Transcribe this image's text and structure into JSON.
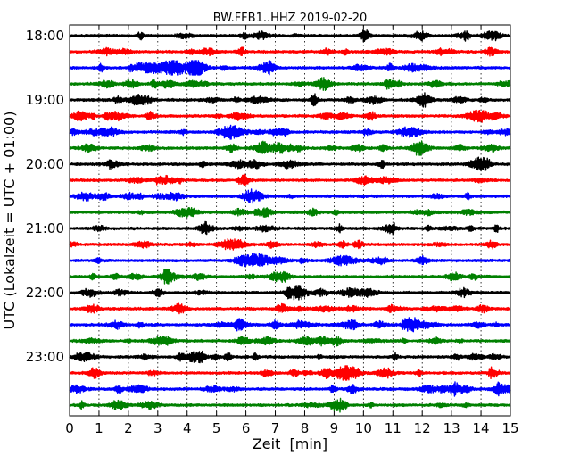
{
  "chart_data": {
    "type": "line",
    "title": "BW.FFB1..HHZ 2019-02-20",
    "xlabel": "Zeit  [min]",
    "ylabel": "UTC (Lokalzeit = UTC + 01:00)",
    "xlim": [
      0,
      15
    ],
    "x_ticks": [
      "0",
      "1",
      "2",
      "3",
      "4",
      "5",
      "6",
      "7",
      "8",
      "9",
      "10",
      "11",
      "12",
      "13",
      "14",
      "15"
    ],
    "y_ticks": [
      "18:00",
      "19:00",
      "20:00",
      "21:00",
      "22:00",
      "23:00"
    ],
    "x_grid": "dotted",
    "trace_start_times": [
      "18:00",
      "18:15",
      "18:30",
      "18:45",
      "19:00",
      "19:15",
      "19:30",
      "19:45",
      "20:00",
      "20:15",
      "20:30",
      "20:45",
      "21:00",
      "21:15",
      "21:30",
      "21:45",
      "22:00",
      "22:15",
      "22:30",
      "22:45",
      "23:00",
      "23:15",
      "23:30",
      "23:45"
    ],
    "trace_color_cycle": [
      "#000000",
      "#ff0000",
      "#0000ff",
      "#008000"
    ],
    "traces_per_row_minutes": 15,
    "notable_events": [
      {
        "trace": "18:30",
        "start_min": 2.0,
        "end_min": 4.8,
        "label": ""
      },
      {
        "trace": "22:30",
        "start_min": 11.3,
        "end_min": 12.2,
        "label": ""
      }
    ]
  }
}
